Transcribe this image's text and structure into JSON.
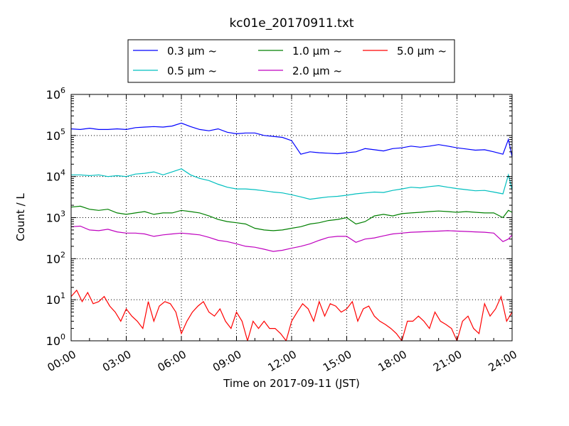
{
  "chart_data": {
    "type": "line",
    "title": "kc01e_20170911.txt",
    "xlabel": "Time on 2017-09-11 (JST)",
    "ylabel": "Count / L",
    "yscale": "log",
    "ylim": [
      1,
      1000000
    ],
    "xlim": [
      0,
      24
    ],
    "grid": true,
    "legend_placement": "top-center",
    "x_ticks": [
      {
        "value": 0,
        "label": "00:00"
      },
      {
        "value": 3,
        "label": "03:00"
      },
      {
        "value": 6,
        "label": "06:00"
      },
      {
        "value": 9,
        "label": "09:00"
      },
      {
        "value": 12,
        "label": "12:00"
      },
      {
        "value": 15,
        "label": "15:00"
      },
      {
        "value": 18,
        "label": "18:00"
      },
      {
        "value": 21,
        "label": "21:00"
      },
      {
        "value": 24,
        "label": "24:00"
      }
    ],
    "y_ticks": [
      {
        "value": 1,
        "base": "10",
        "exp": "0"
      },
      {
        "value": 10,
        "base": "10",
        "exp": "1"
      },
      {
        "value": 100,
        "base": "10",
        "exp": "2"
      },
      {
        "value": 1000,
        "base": "10",
        "exp": "3"
      },
      {
        "value": 10000,
        "base": "10",
        "exp": "4"
      },
      {
        "value": 100000,
        "base": "10",
        "exp": "5"
      },
      {
        "value": 1000000,
        "base": "10",
        "exp": "6"
      }
    ],
    "series": [
      {
        "name": "0.3 μm ~",
        "color": "#0000ff",
        "x": [
          0,
          0.5,
          1,
          1.5,
          2,
          2.5,
          3,
          3.5,
          4,
          4.5,
          5,
          5.5,
          6,
          6.5,
          7,
          7.5,
          8,
          8.5,
          9,
          9.5,
          10,
          10.5,
          11,
          11.5,
          12,
          12.5,
          13,
          13.5,
          14,
          14.5,
          15,
          15.5,
          16,
          16.5,
          17,
          17.5,
          18,
          18.5,
          19,
          19.5,
          20,
          20.5,
          21,
          21.5,
          22,
          22.5,
          23,
          23.5,
          23.8,
          24
        ],
        "values": [
          145000,
          140000,
          150000,
          140000,
          140000,
          145000,
          140000,
          155000,
          160000,
          165000,
          160000,
          170000,
          200000,
          165000,
          140000,
          130000,
          145000,
          120000,
          110000,
          115000,
          115000,
          100000,
          95000,
          90000,
          75000,
          35000,
          40000,
          38000,
          37000,
          36000,
          38000,
          40000,
          48000,
          45000,
          42000,
          48000,
          50000,
          55000,
          52000,
          55000,
          60000,
          55000,
          50000,
          47000,
          44000,
          45000,
          40000,
          35000,
          80000,
          30000
        ]
      },
      {
        "name": "0.5 μm ~",
        "color": "#00bfbf",
        "x": [
          0,
          0.5,
          1,
          1.5,
          2,
          2.5,
          3,
          3.5,
          4,
          4.5,
          5,
          5.5,
          6,
          6.5,
          7,
          7.5,
          8,
          8.5,
          9,
          9.5,
          10,
          10.5,
          11,
          11.5,
          12,
          12.5,
          13,
          13.5,
          14,
          14.5,
          15,
          15.5,
          16,
          16.5,
          17,
          17.5,
          18,
          18.5,
          19,
          19.5,
          20,
          20.5,
          21,
          21.5,
          22,
          22.5,
          23,
          23.5,
          23.8,
          24
        ],
        "values": [
          11000,
          11000,
          10500,
          11000,
          10000,
          10500,
          10000,
          11500,
          12000,
          13000,
          11000,
          13000,
          15500,
          11000,
          9000,
          8000,
          6500,
          5500,
          5000,
          5000,
          4800,
          4500,
          4200,
          4000,
          3600,
          3200,
          2800,
          3000,
          3200,
          3300,
          3500,
          3800,
          4000,
          4200,
          4100,
          4600,
          5000,
          5500,
          5300,
          5700,
          6000,
          5500,
          5100,
          4800,
          4500,
          4600,
          4200,
          3800,
          11000,
          4700
        ]
      },
      {
        "name": "1.0 μm ~",
        "color": "#008000",
        "x": [
          0,
          0.5,
          1,
          1.5,
          2,
          2.5,
          3,
          3.5,
          4,
          4.5,
          5,
          5.5,
          6,
          6.5,
          7,
          7.5,
          8,
          8.5,
          9,
          9.5,
          10,
          10.5,
          11,
          11.5,
          12,
          12.5,
          13,
          13.5,
          14,
          14.5,
          15,
          15.5,
          16,
          16.5,
          17,
          17.5,
          18,
          18.5,
          19,
          19.5,
          20,
          20.5,
          21,
          21.5,
          22,
          22.5,
          23,
          23.5,
          23.8,
          24
        ],
        "values": [
          1800,
          1900,
          1600,
          1500,
          1600,
          1300,
          1200,
          1300,
          1400,
          1200,
          1300,
          1300,
          1500,
          1400,
          1300,
          1100,
          900,
          800,
          750,
          700,
          550,
          500,
          480,
          500,
          550,
          600,
          700,
          750,
          850,
          900,
          1000,
          700,
          800,
          1100,
          1200,
          1100,
          1250,
          1300,
          1350,
          1400,
          1450,
          1400,
          1350,
          1400,
          1350,
          1300,
          1300,
          1000,
          1500,
          1350
        ]
      },
      {
        "name": "2.0 μm ~",
        "color": "#bf00bf",
        "x": [
          0,
          0.5,
          1,
          1.5,
          2,
          2.5,
          3,
          3.5,
          4,
          4.5,
          5,
          5.5,
          6,
          6.5,
          7,
          7.5,
          8,
          8.5,
          9,
          9.5,
          10,
          10.5,
          11,
          11.5,
          12,
          12.5,
          13,
          13.5,
          14,
          14.5,
          15,
          15.5,
          16,
          16.5,
          17,
          17.5,
          18,
          18.5,
          19,
          19.5,
          20,
          20.5,
          21,
          21.5,
          22,
          22.5,
          23,
          23.5,
          23.8,
          24
        ],
        "values": [
          600,
          620,
          500,
          480,
          520,
          450,
          420,
          420,
          400,
          350,
          380,
          400,
          420,
          400,
          380,
          330,
          280,
          260,
          230,
          200,
          190,
          170,
          150,
          160,
          180,
          200,
          230,
          280,
          330,
          350,
          350,
          250,
          300,
          320,
          360,
          400,
          420,
          440,
          450,
          460,
          470,
          480,
          470,
          460,
          450,
          440,
          420,
          260,
          300,
          380
        ]
      },
      {
        "name": "5.0 μm ~",
        "color": "#ff0000",
        "x": [
          0,
          0.3,
          0.6,
          0.9,
          1.2,
          1.5,
          1.8,
          2.1,
          2.4,
          2.7,
          3,
          3.3,
          3.6,
          3.9,
          4.2,
          4.5,
          4.8,
          5.1,
          5.4,
          5.7,
          6,
          6.3,
          6.6,
          6.9,
          7.2,
          7.5,
          7.8,
          8.1,
          8.4,
          8.7,
          9,
          9.3,
          9.6,
          9.9,
          10.2,
          10.5,
          10.8,
          11.1,
          11.4,
          11.7,
          12,
          12.3,
          12.6,
          12.9,
          13.2,
          13.5,
          13.8,
          14.1,
          14.4,
          14.7,
          15,
          15.3,
          15.6,
          15.9,
          16.2,
          16.5,
          16.8,
          17.1,
          17.4,
          17.7,
          18,
          18.3,
          18.6,
          18.9,
          19.2,
          19.5,
          19.8,
          20.1,
          20.4,
          20.7,
          21,
          21.3,
          21.6,
          21.9,
          22.2,
          22.5,
          22.8,
          23.1,
          23.4,
          23.7,
          24
        ],
        "values": [
          12,
          17,
          9,
          15,
          8,
          9,
          12,
          7,
          5,
          3,
          6,
          4,
          3,
          2,
          9,
          3,
          7,
          9,
          8,
          5,
          1.5,
          3,
          5,
          7,
          9,
          5,
          4,
          6,
          3,
          2,
          5,
          3,
          1,
          3,
          2,
          3,
          2,
          2,
          1.5,
          1,
          3,
          5,
          8,
          6,
          3,
          9,
          4,
          8,
          7,
          5,
          6,
          9,
          3,
          6,
          7,
          4,
          3,
          2.5,
          2,
          1.5,
          1,
          3,
          3,
          4,
          3,
          2,
          5,
          3,
          2.5,
          2,
          1,
          3,
          4,
          2,
          1.5,
          8,
          4,
          6,
          12,
          3,
          5
        ]
      }
    ]
  }
}
